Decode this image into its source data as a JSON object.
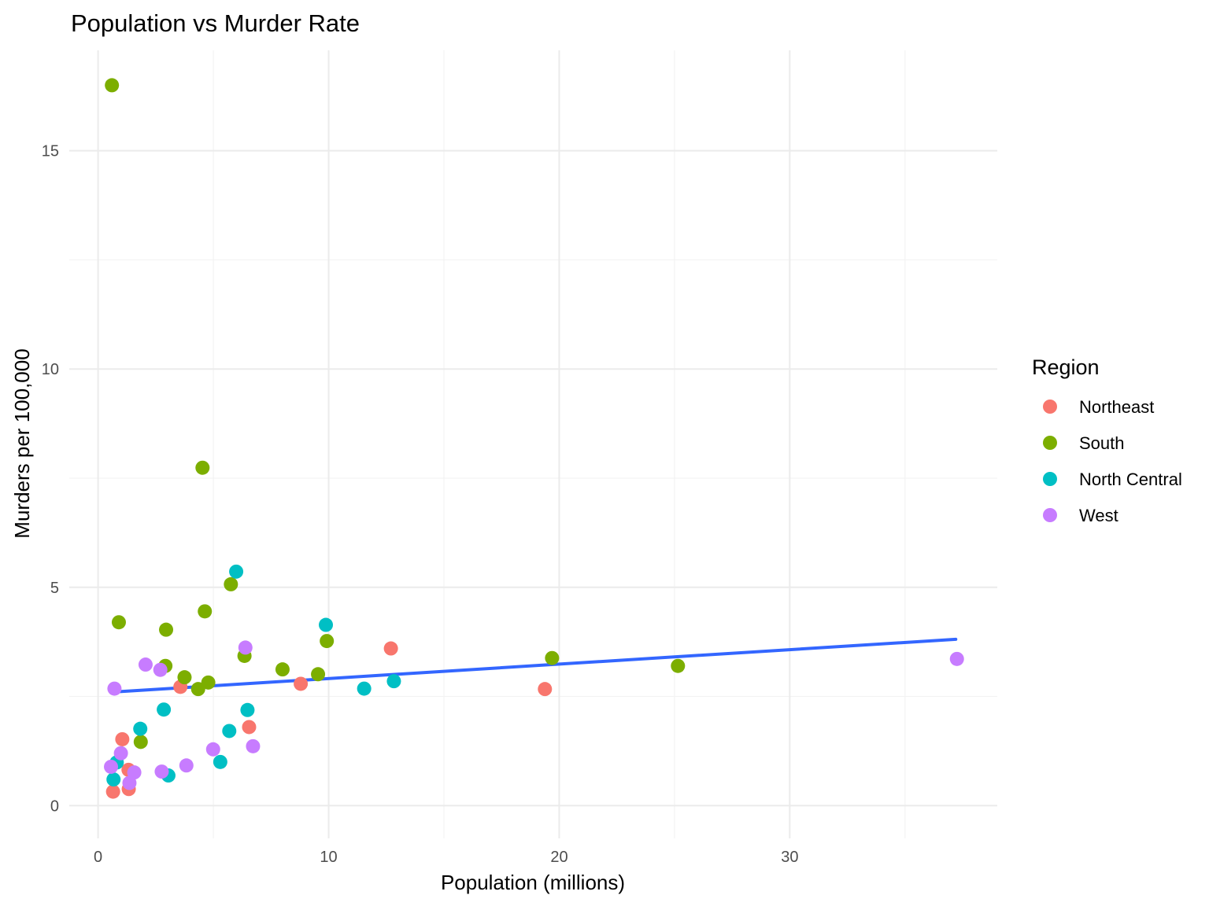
{
  "chart_data": {
    "type": "scatter",
    "title": "Population vs Murder Rate",
    "xlabel": "Population (millions)",
    "ylabel": "Murders per 100,000",
    "xlim": [
      -1.25,
      39
    ],
    "ylim": [
      -0.75,
      17.3
    ],
    "x_ticks": [
      0,
      10,
      20,
      30
    ],
    "y_ticks": [
      0,
      5,
      10,
      15
    ],
    "grid": true,
    "legend": {
      "title": "Region",
      "position": "right"
    },
    "series": [
      {
        "name": "Northeast",
        "color": "#F8766D",
        "points": [
          {
            "x": 0.65,
            "y": 0.32
          },
          {
            "x": 1.05,
            "y": 1.52
          },
          {
            "x": 1.32,
            "y": 0.82
          },
          {
            "x": 1.33,
            "y": 0.38
          },
          {
            "x": 3.57,
            "y": 2.72
          },
          {
            "x": 6.55,
            "y": 1.8
          },
          {
            "x": 8.79,
            "y": 2.79
          },
          {
            "x": 12.7,
            "y": 3.6
          },
          {
            "x": 19.38,
            "y": 2.67
          }
        ]
      },
      {
        "name": "South",
        "color": "#7CAE00",
        "points": [
          {
            "x": 0.6,
            "y": 16.5
          },
          {
            "x": 0.9,
            "y": 4.2
          },
          {
            "x": 1.85,
            "y": 1.46
          },
          {
            "x": 2.92,
            "y": 3.2
          },
          {
            "x": 2.95,
            "y": 4.03
          },
          {
            "x": 3.75,
            "y": 2.94
          },
          {
            "x": 4.34,
            "y": 2.67
          },
          {
            "x": 4.53,
            "y": 7.74
          },
          {
            "x": 4.63,
            "y": 4.45
          },
          {
            "x": 4.78,
            "y": 2.82
          },
          {
            "x": 5.76,
            "y": 5.07
          },
          {
            "x": 6.35,
            "y": 3.43
          },
          {
            "x": 8.0,
            "y": 3.12
          },
          {
            "x": 9.54,
            "y": 3.01
          },
          {
            "x": 9.92,
            "y": 3.77
          },
          {
            "x": 19.69,
            "y": 3.38
          },
          {
            "x": 25.15,
            "y": 3.2
          }
        ]
      },
      {
        "name": "North Central",
        "color": "#00BFC4",
        "points": [
          {
            "x": 0.67,
            "y": 0.6
          },
          {
            "x": 0.81,
            "y": 0.99
          },
          {
            "x": 1.83,
            "y": 1.76
          },
          {
            "x": 2.85,
            "y": 2.2
          },
          {
            "x": 3.05,
            "y": 0.69
          },
          {
            "x": 5.3,
            "y": 1.0
          },
          {
            "x": 5.69,
            "y": 1.71
          },
          {
            "x": 5.99,
            "y": 5.36
          },
          {
            "x": 6.48,
            "y": 2.19
          },
          {
            "x": 9.88,
            "y": 4.14
          },
          {
            "x": 11.54,
            "y": 2.68
          },
          {
            "x": 12.83,
            "y": 2.85
          }
        ]
      },
      {
        "name": "West",
        "color": "#C77CFF",
        "points": [
          {
            "x": 0.56,
            "y": 0.89
          },
          {
            "x": 0.71,
            "y": 2.68
          },
          {
            "x": 0.99,
            "y": 1.2
          },
          {
            "x": 1.36,
            "y": 0.52
          },
          {
            "x": 1.57,
            "y": 0.76
          },
          {
            "x": 2.06,
            "y": 3.23
          },
          {
            "x": 2.7,
            "y": 3.11
          },
          {
            "x": 2.76,
            "y": 0.78
          },
          {
            "x": 3.83,
            "y": 0.92
          },
          {
            "x": 4.99,
            "y": 1.29
          },
          {
            "x": 6.39,
            "y": 3.62
          },
          {
            "x": 6.72,
            "y": 1.36
          },
          {
            "x": 37.25,
            "y": 3.36
          }
        ]
      }
    ],
    "trend_line": {
      "color": "#3366FF",
      "points": [
        {
          "x": 0.6,
          "y": 2.6
        },
        {
          "x": 37.2,
          "y": 3.81
        }
      ]
    }
  }
}
